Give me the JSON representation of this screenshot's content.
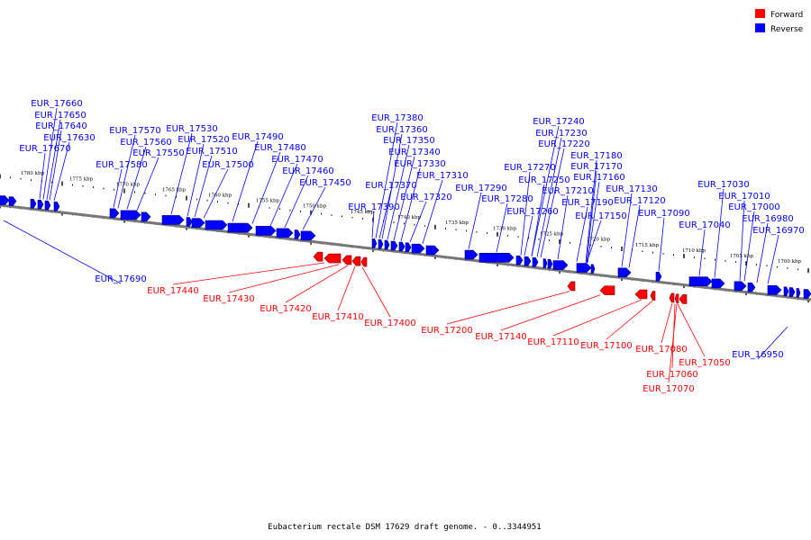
{
  "legend": {
    "forward": {
      "label": "Forward",
      "color": "#ff0000"
    },
    "reverse": {
      "label": "Reverse",
      "color": "#0000ff"
    }
  },
  "caption": "Eubacterium rectale DSM 17629 draft genome. - 0..3344951",
  "kbp_labels": [
    "1780 kbp",
    "1775 kbp",
    "1770 kbp",
    "1765 kbp",
    "1760 kbp",
    "1755 kbp",
    "1750 kbp",
    "1745 kbp",
    "1740 kbp",
    "1735 kbp",
    "1730 kbp",
    "1725 kbp",
    "1720 kbp",
    "1715 kbp",
    "1710 kbp",
    "1705 kbp",
    "1700 kbp"
  ],
  "reverse_labels": [
    "EUR_17660",
    "EUR_17650",
    "EUR_17640",
    "EUR_17630",
    "EUR_17670",
    "EUR_17570",
    "EUR_17560",
    "EUR_17550",
    "EUR_17580",
    "EUR_17530",
    "EUR_17520",
    "EUR_17510",
    "EUR_17500",
    "EUR_17490",
    "EUR_17480",
    "EUR_17470",
    "EUR_17460",
    "EUR_17450",
    "EUR_17380",
    "EUR_17360",
    "EUR_17350",
    "EUR_17340",
    "EUR_17330",
    "EUR_17310",
    "EUR_17370",
    "EUR_17320",
    "EUR_17390",
    "EUR_17290",
    "EUR_17280",
    "EUR_17240",
    "EUR_17230",
    "EUR_17220",
    "EUR_17270",
    "EUR_17250",
    "EUR_17260",
    "EUR_17180",
    "EUR_17170",
    "EUR_17160",
    "EUR_17210",
    "EUR_17130",
    "EUR_17190",
    "EUR_17120",
    "EUR_17150",
    "EUR_17090",
    "EUR_17030",
    "EUR_17010",
    "EUR_17040",
    "EUR_17000",
    "EUR_16980",
    "EUR_16970",
    "EUR_17690",
    "EUR_16950"
  ],
  "forward_labels": [
    "EUR_17440",
    "EUR_17430",
    "EUR_17420",
    "EUR_17410",
    "EUR_17400",
    "EUR_17200",
    "EUR_17140",
    "EUR_17110",
    "EUR_17100",
    "EUR_17080",
    "EUR_17060",
    "EUR_17050",
    "EUR_17070"
  ]
}
